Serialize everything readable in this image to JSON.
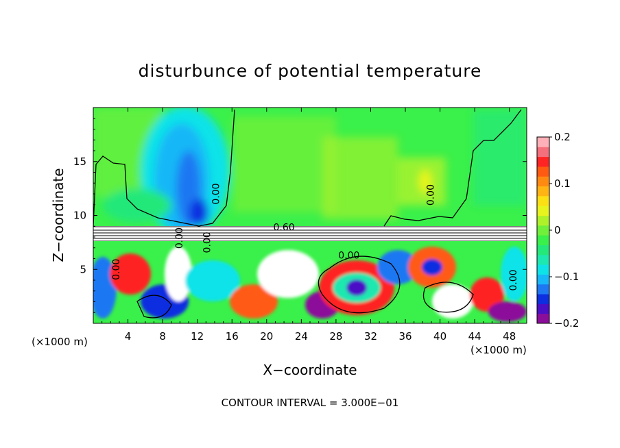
{
  "chart_data": {
    "type": "heatmap",
    "title": "disturbunce of potential temperature",
    "xlabel": "X−coordinate",
    "ylabel": "Z−coordinate",
    "x_units_left": "(×1000 m)",
    "x_units_right": "(×1000 m)",
    "footer": "CONTOUR INTERVAL = 3.000E−01",
    "xlim": [
      0,
      50
    ],
    "ylim": [
      0,
      20
    ],
    "x_ticks": [
      4,
      8,
      12,
      16,
      20,
      24,
      28,
      32,
      36,
      40,
      44,
      48
    ],
    "x_tick_labels": [
      "4",
      "8",
      "12",
      "16",
      "20",
      "24",
      "28",
      "32",
      "36",
      "40",
      "44",
      "48"
    ],
    "y_ticks": [
      5,
      10,
      15
    ],
    "y_tick_labels": [
      "5",
      "10",
      "15"
    ],
    "colorbar": {
      "range": [
        -0.2,
        0.2
      ],
      "ticks": [
        0.2,
        0.1,
        0,
        -0.1,
        -0.2
      ],
      "tick_labels": [
        "0.2",
        "0.1",
        "0",
        "−0.1",
        "−0.2"
      ],
      "colors": [
        "#8b0e9a",
        "#4b0fc6",
        "#0d2fe0",
        "#1d78f2",
        "#18b7f7",
        "#0ee3e8",
        "#1de8b0",
        "#24e87a",
        "#3af04a",
        "#70f03a",
        "#b0f22a",
        "#e8f41e",
        "#fce016",
        "#ffb414",
        "#ff8a12",
        "#ff5a12",
        "#ff2424",
        "#f4707c",
        "#ffb0b8"
      ]
    },
    "contour_labels": [
      {
        "text": "0.00",
        "x": 14.5,
        "y": 12.0
      },
      {
        "text": "0.00",
        "x": 39.3,
        "y": 11.9
      },
      {
        "text": "0.60",
        "x": 22.0,
        "y": 8.6
      },
      {
        "text": "0.00",
        "x": 29.5,
        "y": 6.0
      },
      {
        "text": "0.00",
        "x": 3.0,
        "y": 5.0
      },
      {
        "text": "0.00",
        "x": 48.8,
        "y": 4.0
      },
      {
        "text": "0.00",
        "x": 13.5,
        "y": 7.5
      },
      {
        "text": "0.00",
        "x": 10.3,
        "y": 7.9
      }
    ],
    "field_regions": {
      "upper_background": "#3af04a",
      "upper_cool_plume_x": [
        8,
        14
      ],
      "inversion_band_z": [
        7.6,
        8.9
      ],
      "lower_turbulent_z": [
        0,
        7.6
      ]
    }
  }
}
